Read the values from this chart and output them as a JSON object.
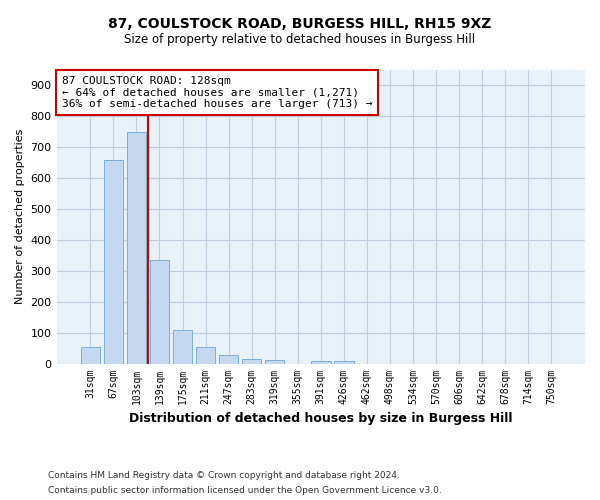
{
  "title_line1": "87, COULSTOCK ROAD, BURGESS HILL, RH15 9XZ",
  "title_line2": "Size of property relative to detached houses in Burgess Hill",
  "xlabel": "Distribution of detached houses by size in Burgess Hill",
  "ylabel": "Number of detached properties",
  "footnote_line1": "Contains HM Land Registry data © Crown copyright and database right 2024.",
  "footnote_line2": "Contains public sector information licensed under the Open Government Licence v3.0.",
  "bar_labels": [
    "31sqm",
    "67sqm",
    "103sqm",
    "139sqm",
    "175sqm",
    "211sqm",
    "247sqm",
    "283sqm",
    "319sqm",
    "355sqm",
    "391sqm",
    "426sqm",
    "462sqm",
    "498sqm",
    "534sqm",
    "570sqm",
    "606sqm",
    "642sqm",
    "678sqm",
    "714sqm",
    "750sqm"
  ],
  "bar_values": [
    55,
    660,
    750,
    335,
    108,
    53,
    27,
    15,
    11,
    0,
    8,
    8,
    0,
    0,
    0,
    0,
    0,
    0,
    0,
    0,
    0
  ],
  "bar_color": "#c5d8f0",
  "bar_edge_color": "#7bafd4",
  "vline_color": "#cc0000",
  "ylim": [
    0,
    950
  ],
  "yticks": [
    0,
    100,
    200,
    300,
    400,
    500,
    600,
    700,
    800,
    900
  ],
  "annotation_text": "87 COULSTOCK ROAD: 128sqm\n← 64% of detached houses are smaller (1,271)\n36% of semi-detached houses are larger (713) →",
  "annotation_box_color": "#cc0000",
  "grid_color": "#c0cfe0",
  "background_color": "#e8f0f8"
}
